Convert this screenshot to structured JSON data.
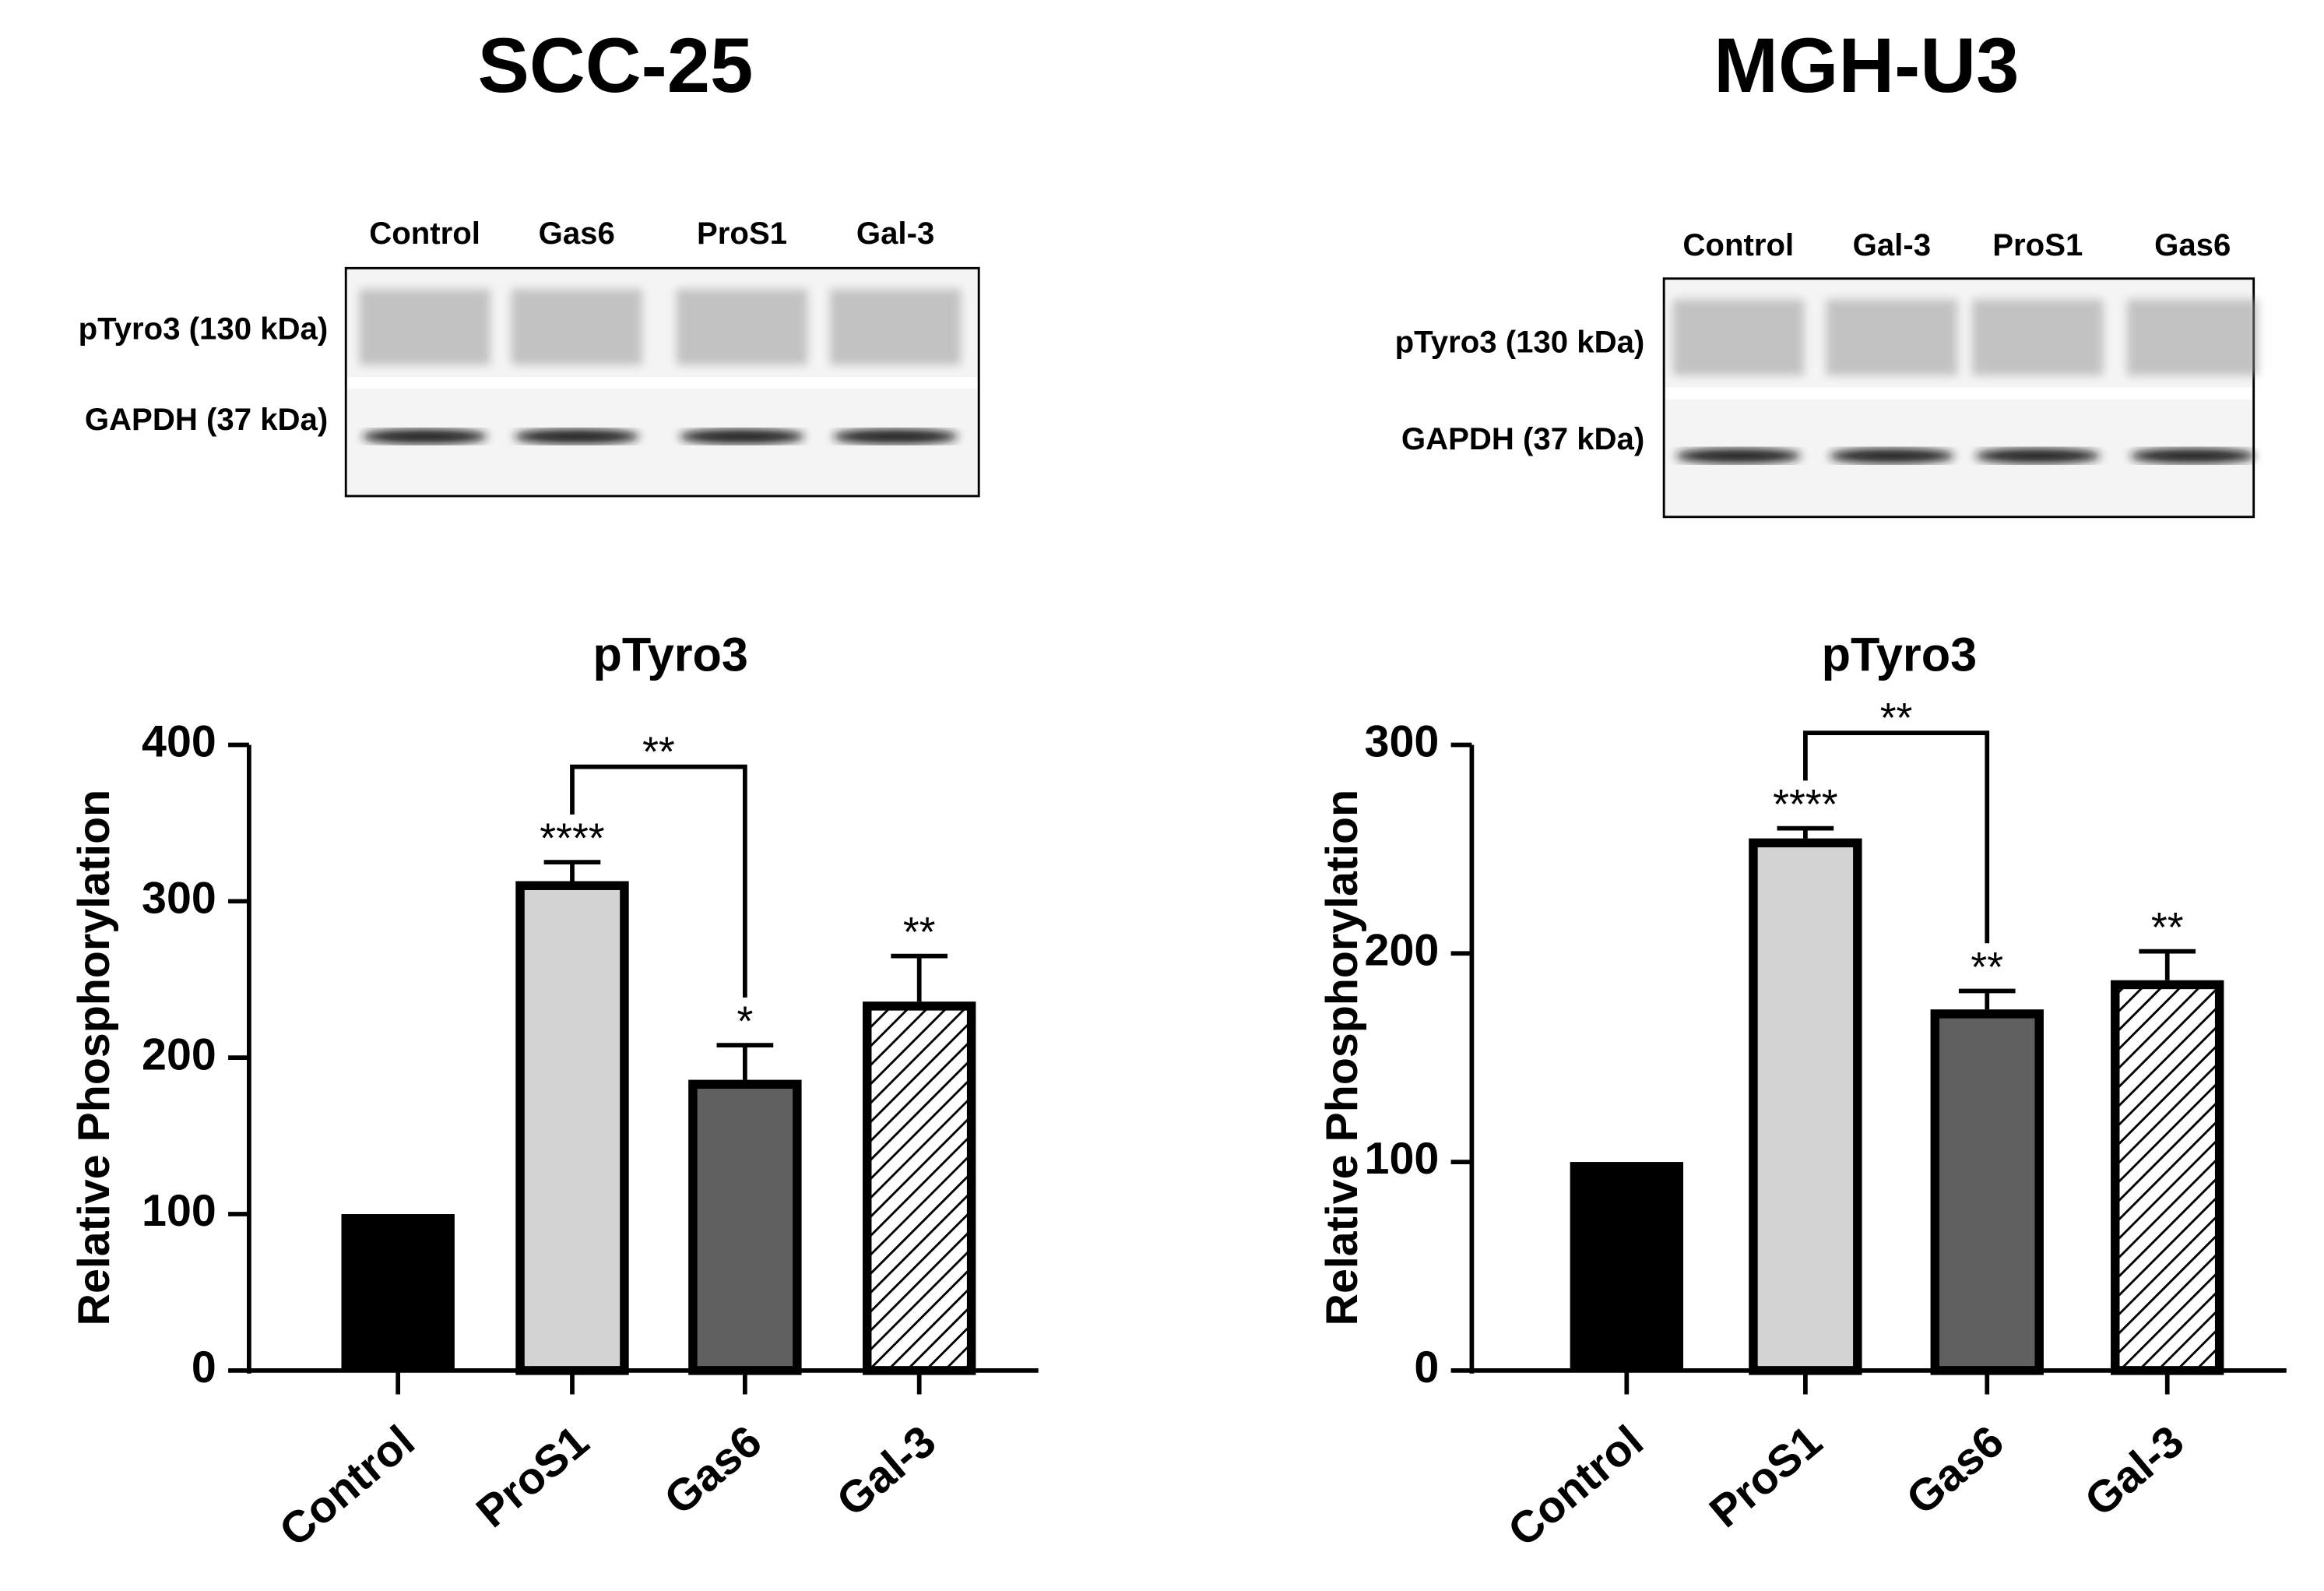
{
  "chart_data": [
    {
      "type": "bar",
      "panel_title": "SCC-25",
      "blot": {
        "lanes": [
          "Control",
          "Gas6",
          "ProS1",
          "Gal-3"
        ],
        "bands": [
          "pTyro3 (130 kDa)",
          "GAPDH (37 kDa)"
        ]
      },
      "title": "pTyro3",
      "ylabel": "Relative Phosphorylation",
      "categories": [
        "Control",
        "ProS1",
        "Gas6",
        "Gal-3"
      ],
      "values": [
        100,
        310,
        183,
        233
      ],
      "errors": [
        0,
        15,
        25,
        32
      ],
      "annotations": [
        null,
        "****",
        "*",
        "**"
      ],
      "bracket": {
        "from": 1,
        "to": 2,
        "label": "**"
      },
      "colors": [
        "#000000",
        "#d3d3d3",
        "#606060",
        "#ffffff"
      ],
      "hatched": [
        false,
        false,
        false,
        true
      ],
      "ylim": [
        0,
        400
      ],
      "yticks": [
        0,
        100,
        200,
        300,
        400
      ]
    },
    {
      "type": "bar",
      "panel_title": "MGH-U3",
      "blot": {
        "lanes": [
          "Control",
          "Gal-3",
          "ProS1",
          "Gas6"
        ],
        "bands": [
          "pTyro3 (130 kDa)",
          "GAPDH (37 kDa)"
        ]
      },
      "title": "pTyro3",
      "ylabel": "Relative Phosphorylation",
      "categories": [
        "Control",
        "ProS1",
        "Gas6",
        "Gal-3"
      ],
      "values": [
        100,
        253,
        171,
        185
      ],
      "errors": [
        0,
        7,
        11,
        16
      ],
      "annotations": [
        null,
        "****",
        "**",
        "**"
      ],
      "bracket": {
        "from": 1,
        "to": 2,
        "label": "**"
      },
      "colors": [
        "#000000",
        "#d3d3d3",
        "#606060",
        "#ffffff"
      ],
      "hatched": [
        false,
        false,
        false,
        true
      ],
      "ylim": [
        0,
        300
      ],
      "yticks": [
        0,
        100,
        200,
        300
      ]
    }
  ]
}
